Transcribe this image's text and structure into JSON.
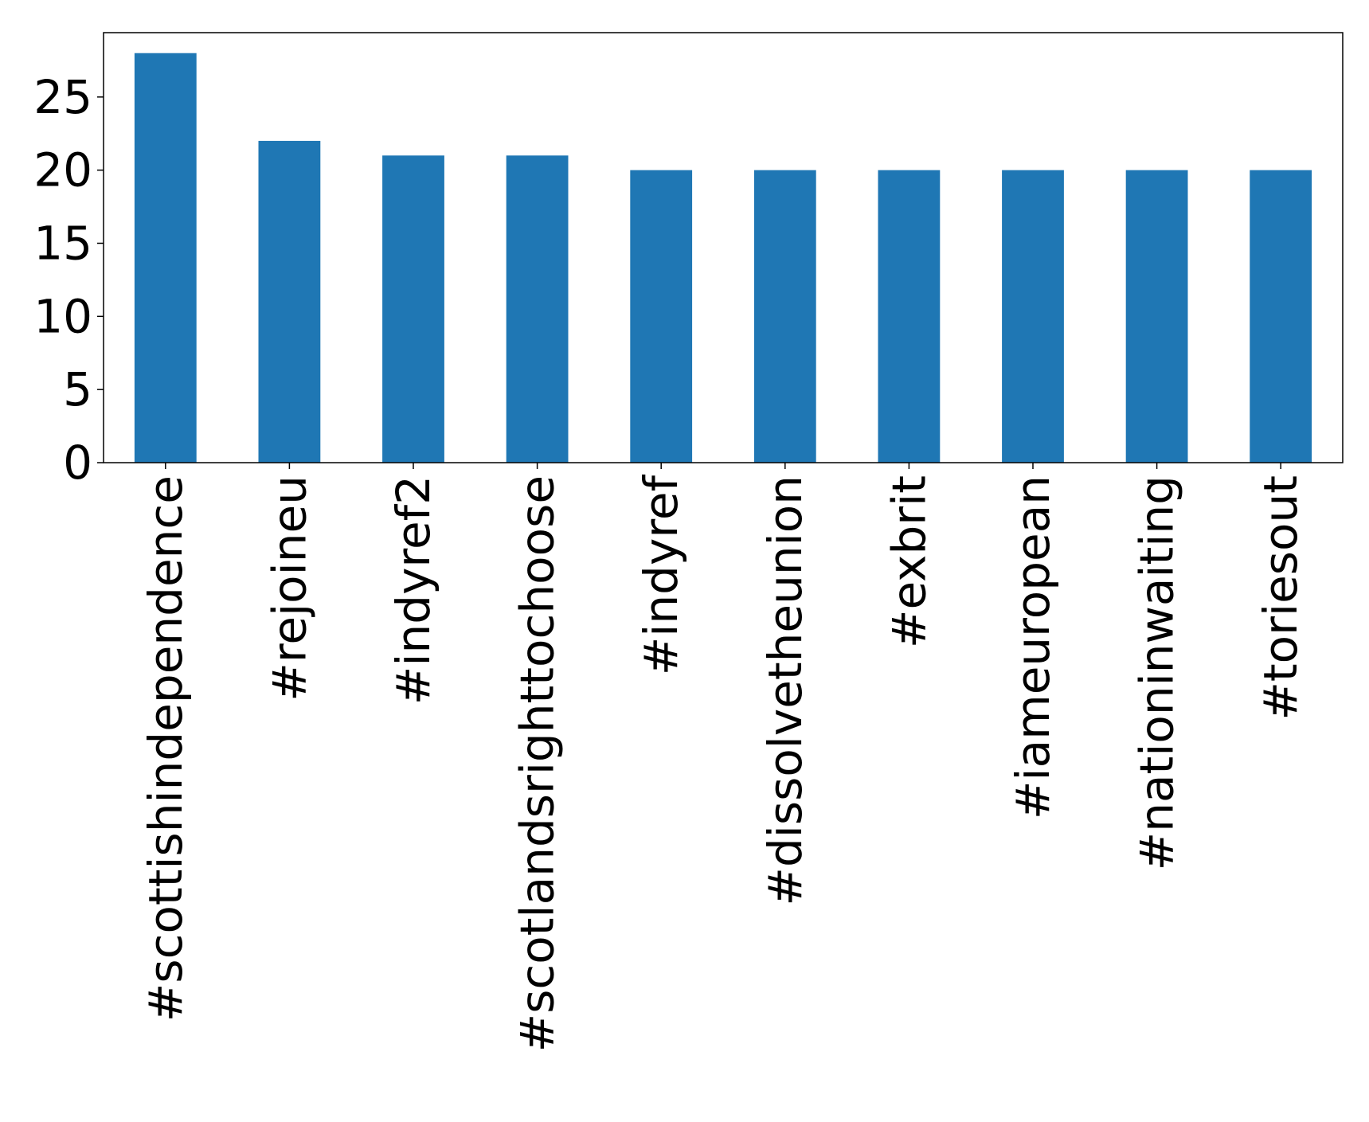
{
  "chart_data": {
    "type": "bar",
    "categories": [
      "#scottishindependence",
      "#rejoineu",
      "#indyref2",
      "#scotlandsrighttochoose",
      "#indyref",
      "#dissolvetheunion",
      "#exbrit",
      "#iameuropean",
      "#nationinwaiting",
      "#toriesout"
    ],
    "values": [
      28,
      22,
      21,
      21,
      20,
      20,
      20,
      20,
      20,
      20
    ],
    "title": "",
    "xlabel": "",
    "ylabel": "",
    "ylim": [
      0,
      29.4
    ],
    "yticks": [
      0,
      5,
      10,
      15,
      20,
      25
    ],
    "ytick_labels": [
      "0",
      "5",
      "10",
      "15",
      "20",
      "25"
    ],
    "grid": false,
    "bar_color": "#1f77b4"
  }
}
